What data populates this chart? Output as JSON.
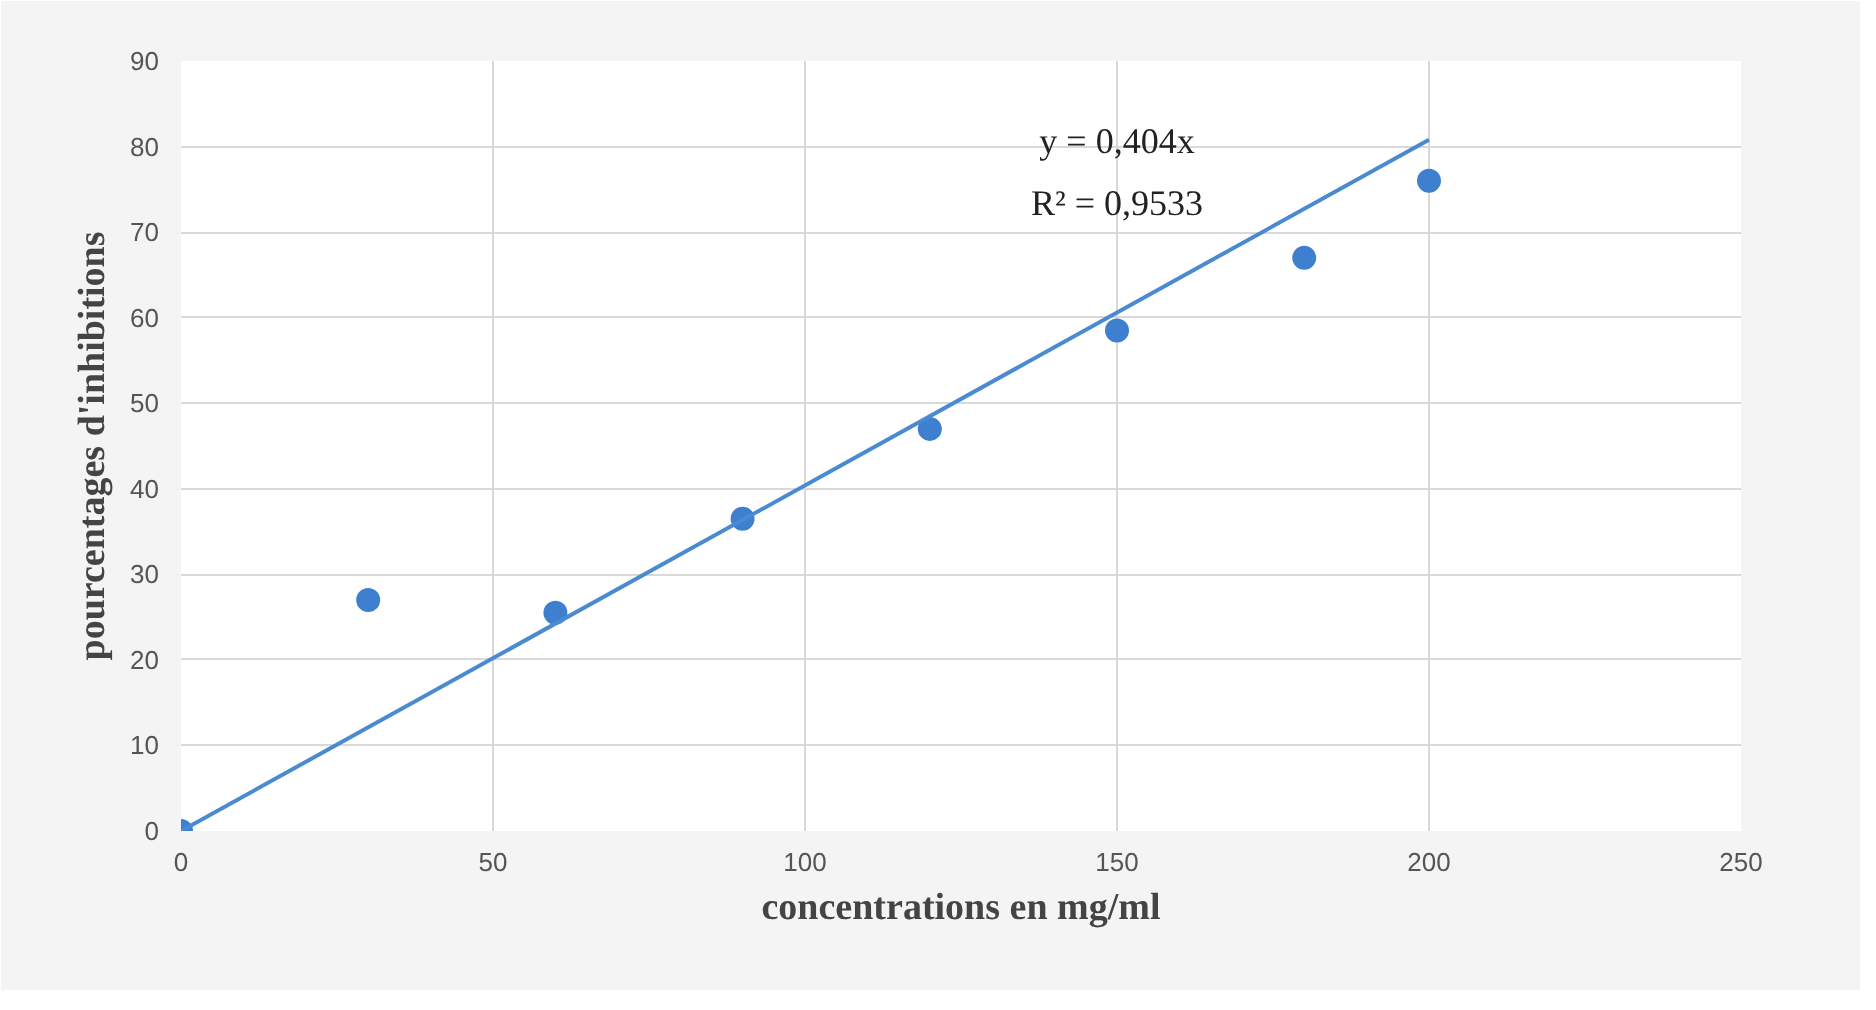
{
  "chart_data": {
    "type": "scatter",
    "xlabel": "concentrations en mg/ml",
    "ylabel": "pourcentages d'inhibitions",
    "x": [
      0,
      30,
      60,
      90,
      120,
      150,
      180,
      200
    ],
    "series": [
      {
        "color": "#3f7fcf",
        "values": [
          0,
          27,
          25.5,
          36.5,
          47,
          58.5,
          67,
          76
        ]
      },
      {
        "type": "line",
        "marker": "none",
        "color": "#4a8ad0",
        "x": [
          0,
          200
        ],
        "values": [
          0,
          80.8
        ]
      }
    ],
    "annotations": [
      "y = 0,404x",
      "R² = 0,9533"
    ],
    "xlim": [
      0,
      250
    ],
    "xticks": [
      0,
      50,
      100,
      150,
      200,
      250
    ],
    "ylim": [
      0,
      90
    ],
    "yticks": [
      0,
      10,
      20,
      30,
      40,
      50,
      60,
      70,
      80,
      90
    ],
    "grid": true,
    "marker": "circle",
    "line_style": "solid"
  }
}
